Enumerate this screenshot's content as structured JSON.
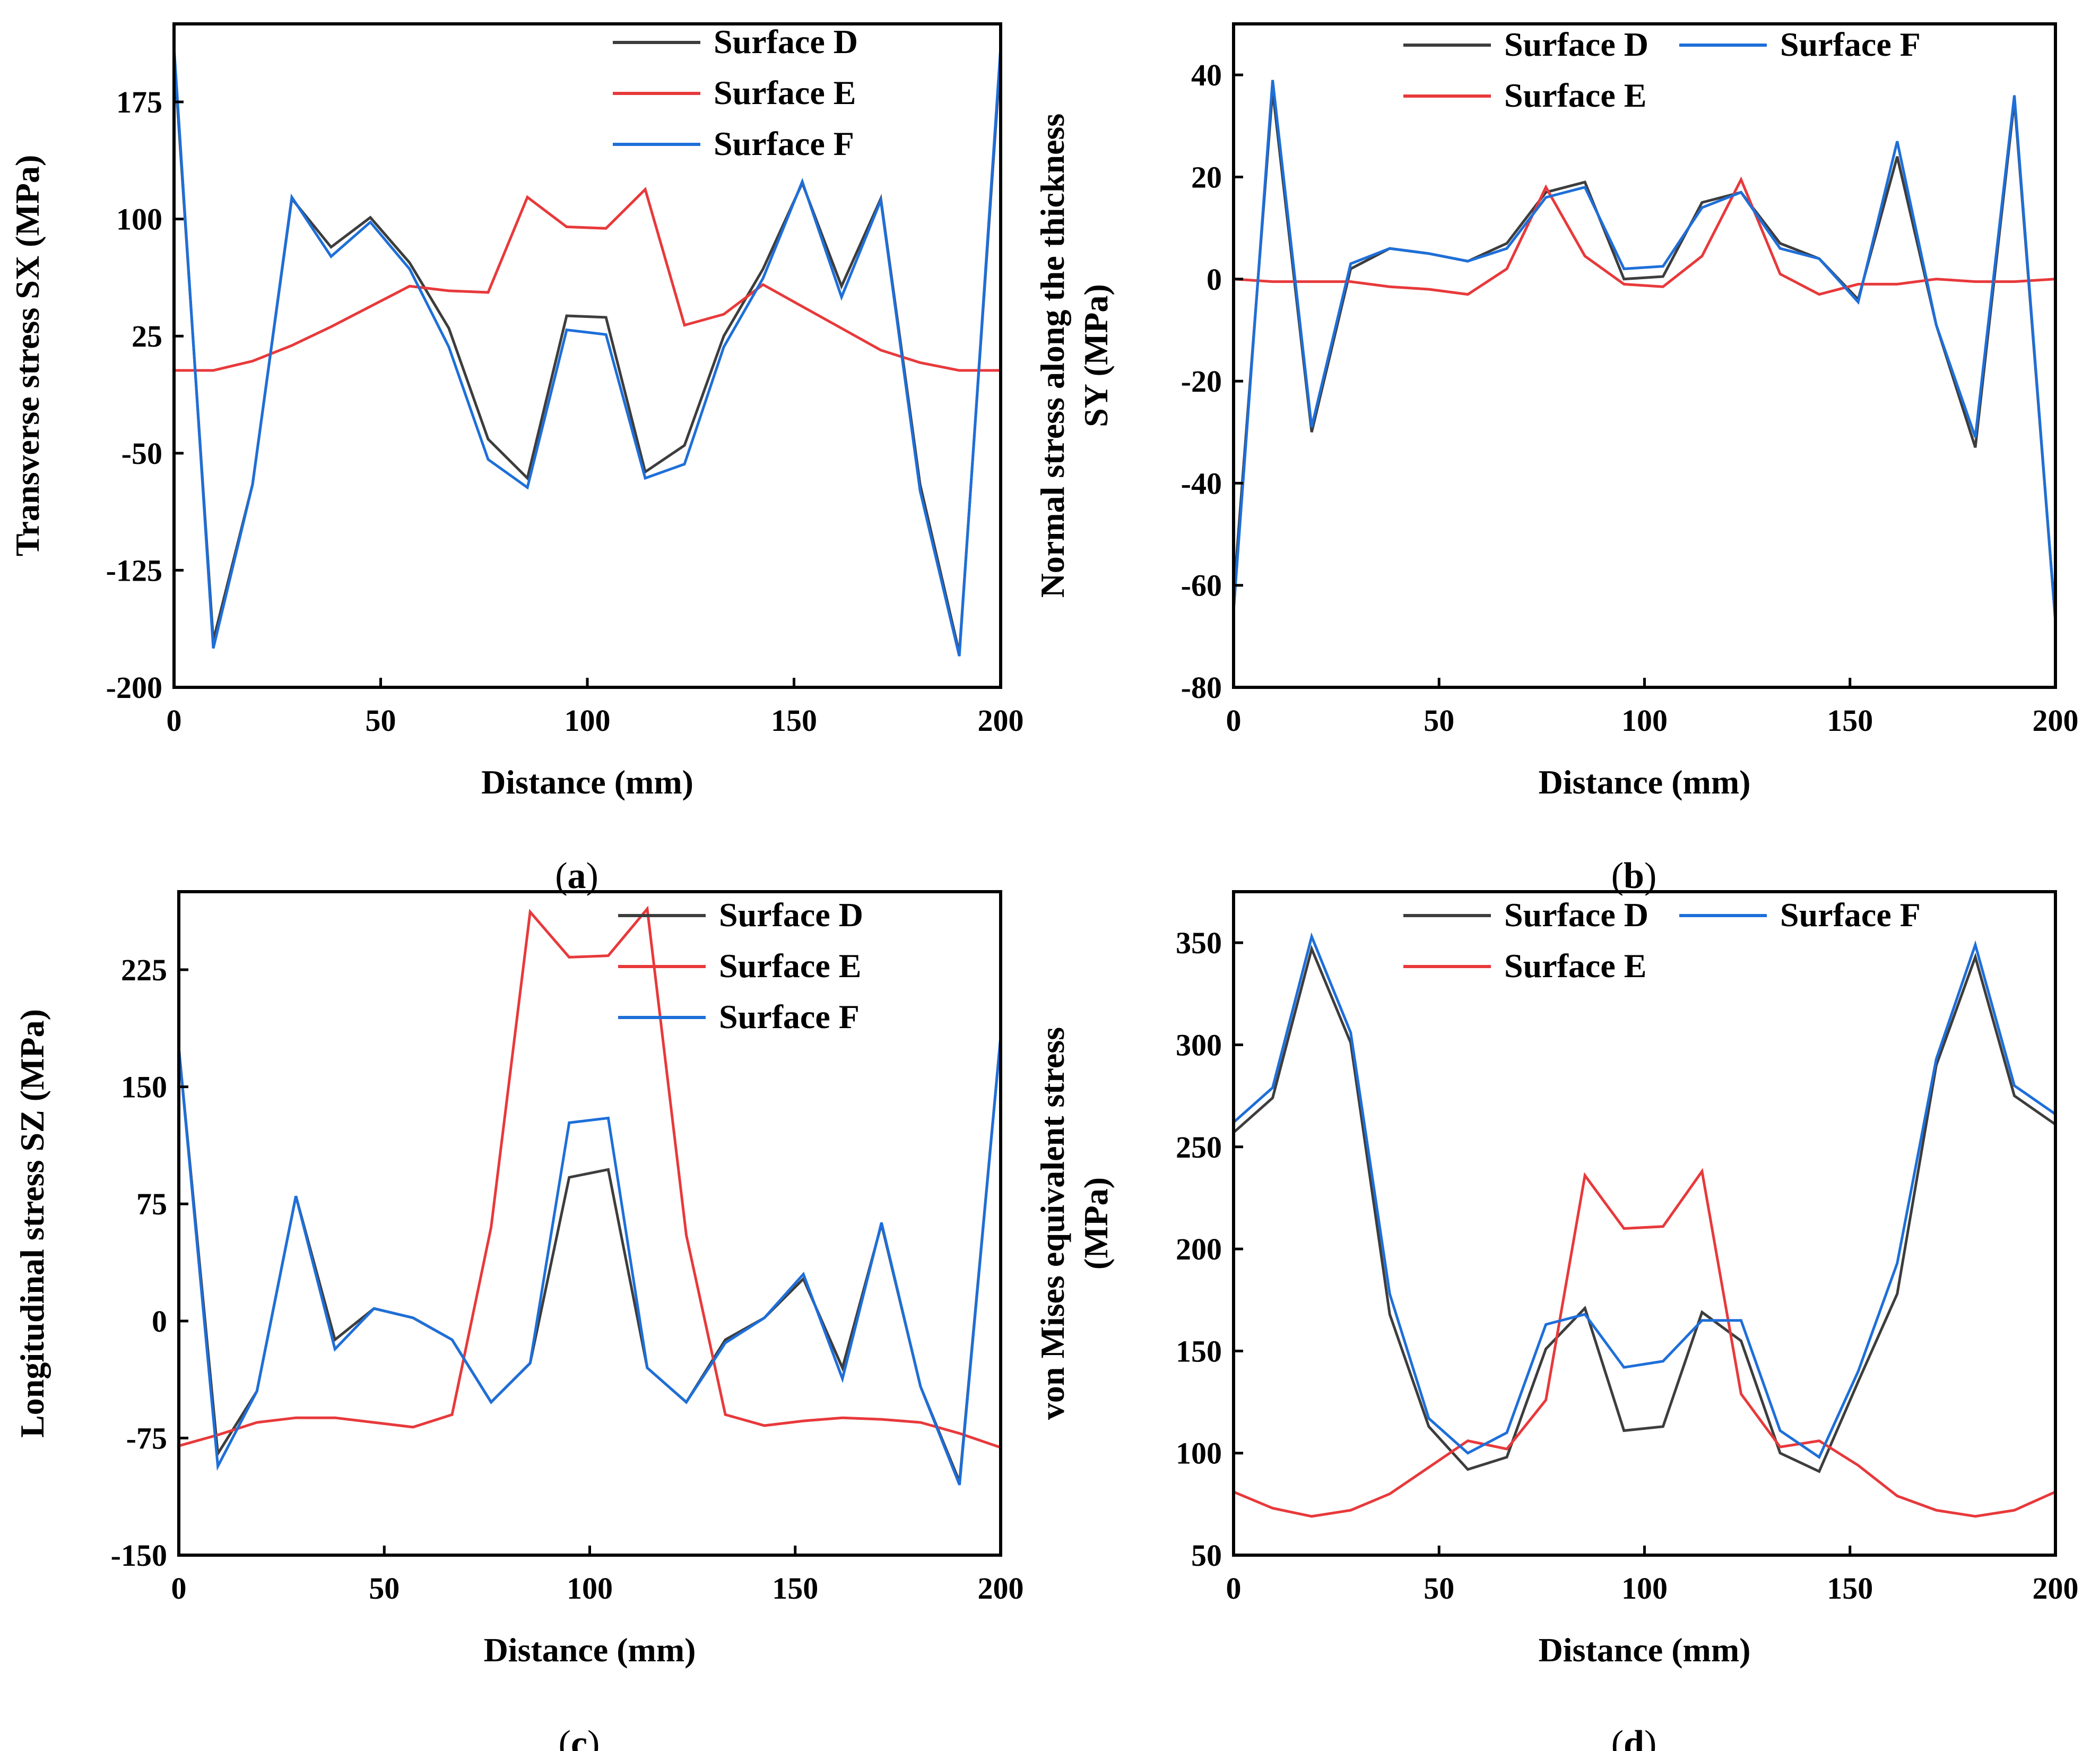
{
  "colors": {
    "surface_d": "#3d3d3d",
    "surface_e": "#e8393b",
    "surface_f": "#1e6fd9",
    "axis": "#000000"
  },
  "chart_data": [
    {
      "panel": "(a)",
      "panel_letter": "a",
      "type": "line",
      "xlabel": "Distance (mm)",
      "ylabel_lines": [
        "Transverse stress SX (MPa)"
      ],
      "xlim": [
        0,
        200
      ],
      "ylim": [
        -200,
        225
      ],
      "xticks": [
        0,
        50,
        100,
        150,
        200
      ],
      "xtick_labels": [
        "0",
        "50",
        "100",
        "150",
        "200"
      ],
      "yticks": [
        -200,
        -125,
        -50,
        25,
        100,
        175
      ],
      "ytick_labels": [
        "-200",
        "-125",
        "-50",
        "25",
        "100",
        "175"
      ],
      "legend_columns": 1,
      "legend_order": [
        "Surface D",
        "Surface E",
        "Surface F"
      ],
      "series": [
        {
          "name": "Surface D",
          "color_key": "surface_d",
          "x": [
            0,
            9.5,
            19,
            28.5,
            38,
            47.5,
            57,
            66.5,
            76,
            85.5,
            95,
            104.5,
            114,
            123.5,
            133,
            142.5,
            152,
            161.5,
            171,
            180.5,
            190,
            200
          ],
          "y": [
            205,
            -170,
            -70,
            113,
            82,
            101,
            72,
            30,
            -41,
            -66,
            38,
            37,
            -62,
            -45,
            25,
            68,
            123,
            57,
            113,
            -70,
            -178,
            205
          ]
        },
        {
          "name": "Surface E",
          "color_key": "surface_e",
          "x": [
            0,
            9.5,
            19,
            28.5,
            38,
            47.5,
            57,
            66.5,
            76,
            85.5,
            95,
            104.5,
            114,
            123.5,
            133,
            142.5,
            152,
            161.5,
            171,
            180.5,
            190,
            200
          ],
          "y": [
            3,
            3,
            9,
            19,
            31,
            44,
            57,
            54,
            53,
            114,
            95,
            94,
            119,
            32,
            39,
            58,
            44,
            30,
            16,
            8,
            3,
            3
          ]
        },
        {
          "name": "Surface F",
          "color_key": "surface_f",
          "x": [
            0,
            9.5,
            19,
            28.5,
            38,
            47.5,
            57,
            66.5,
            76,
            85.5,
            95,
            104.5,
            114,
            123.5,
            133,
            142.5,
            152,
            161.5,
            171,
            180.5,
            190,
            200
          ],
          "y": [
            210,
            -175,
            -70,
            114,
            76,
            98,
            68,
            18,
            -54,
            -72,
            29,
            26,
            -66,
            -57,
            18,
            62,
            124,
            50,
            112,
            -74,
            -180,
            210
          ]
        }
      ]
    },
    {
      "panel": "(b)",
      "panel_letter": "b",
      "type": "line",
      "xlabel": "Distance (mm)",
      "ylabel_lines": [
        "Normal stress along the thickness",
        "SY (MPa)"
      ],
      "xlim": [
        0,
        200
      ],
      "ylim": [
        -80,
        50
      ],
      "xticks": [
        0,
        50,
        100,
        150,
        200
      ],
      "xtick_labels": [
        "0",
        "50",
        "100",
        "150",
        "200"
      ],
      "yticks": [
        -80,
        -60,
        -40,
        -20,
        0,
        20,
        40
      ],
      "ytick_labels": [
        "-80",
        "-60",
        "-40",
        "-20",
        "0",
        "20",
        "40"
      ],
      "legend_columns": 2,
      "legend_order": [
        "Surface D",
        "Surface F",
        "Surface E"
      ],
      "series": [
        {
          "name": "Surface D",
          "color_key": "surface_d",
          "x": [
            0,
            9.5,
            19,
            28.5,
            38,
            47.5,
            57,
            66.5,
            76,
            85.5,
            95,
            104.5,
            114,
            123.5,
            133,
            142.5,
            152,
            161.5,
            171,
            180.5,
            190,
            200
          ],
          "y": [
            -62,
            37,
            -30,
            2,
            6,
            5,
            3.5,
            7,
            17,
            19,
            0,
            0.5,
            15,
            17,
            7,
            4,
            -4,
            24,
            -9,
            -33,
            35,
            -67
          ]
        },
        {
          "name": "Surface E",
          "color_key": "surface_e",
          "x": [
            0,
            9.5,
            19,
            28.5,
            38,
            47.5,
            57,
            66.5,
            76,
            85.5,
            95,
            104.5,
            114,
            123.5,
            133,
            142.5,
            152,
            161.5,
            171,
            180.5,
            190,
            200
          ],
          "y": [
            0,
            -0.5,
            -0.5,
            -0.5,
            -1.5,
            -2,
            -3,
            2,
            18,
            4.5,
            -1,
            -1.5,
            4.5,
            19.5,
            1,
            -3,
            -1,
            -1,
            0,
            -0.5,
            -0.5,
            0
          ]
        },
        {
          "name": "Surface F",
          "color_key": "surface_f",
          "x": [
            0,
            9.5,
            19,
            28.5,
            38,
            47.5,
            57,
            66.5,
            76,
            85.5,
            95,
            104.5,
            114,
            123.5,
            133,
            142.5,
            152,
            161.5,
            171,
            180.5,
            190,
            200
          ],
          "y": [
            -65,
            39,
            -29,
            3,
            6,
            5,
            3.5,
            6,
            16,
            18,
            2,
            2.5,
            14,
            17,
            6,
            4,
            -4.5,
            27,
            -9,
            -31,
            36,
            -67
          ]
        }
      ]
    },
    {
      "panel": "(c)",
      "panel_letter": "c",
      "type": "line",
      "xlabel": "Distance (mm)",
      "ylabel_lines": [
        "Longitudinal stress SZ (MPa)"
      ],
      "xlim": [
        0,
        200
      ],
      "ylim": [
        -150,
        275
      ],
      "xticks": [
        0,
        50,
        100,
        150,
        200
      ],
      "xtick_labels": [
        "0",
        "50",
        "100",
        "150",
        "200"
      ],
      "yticks": [
        -150,
        -75,
        0,
        75,
        150,
        225
      ],
      "ytick_labels": [
        "-150",
        "-75",
        "0",
        "75",
        "150",
        "225"
      ],
      "legend_columns": 1,
      "legend_order": [
        "Surface D",
        "Surface E",
        "Surface F"
      ],
      "series": [
        {
          "name": "Surface D",
          "color_key": "surface_d",
          "x": [
            0,
            9.5,
            19,
            28.5,
            38,
            47.5,
            57,
            66.5,
            76,
            85.5,
            95,
            104.5,
            114,
            123.5,
            133,
            142.5,
            152,
            161.5,
            171,
            180.5,
            190,
            200
          ],
          "y": [
            175,
            -85,
            -45,
            80,
            -12,
            8,
            2,
            -12,
            -52,
            -27,
            92,
            97,
            -30,
            -52,
            -12,
            2,
            27,
            -30,
            62,
            -42,
            -103,
            182
          ]
        },
        {
          "name": "Surface E",
          "color_key": "surface_e",
          "x": [
            0,
            9.5,
            19,
            28.5,
            38,
            47.5,
            57,
            66.5,
            76,
            85.5,
            95,
            104.5,
            114,
            123.5,
            133,
            142.5,
            152,
            161.5,
            171,
            180.5,
            190,
            200
          ],
          "y": [
            -80,
            -73,
            -65,
            -62,
            -62,
            -65,
            -68,
            -60,
            60,
            262,
            233,
            234,
            264,
            55,
            -60,
            -67,
            -64,
            -62,
            -63,
            -65,
            -72,
            -81
          ]
        },
        {
          "name": "Surface F",
          "color_key": "surface_f",
          "x": [
            0,
            9.5,
            19,
            28.5,
            38,
            47.5,
            57,
            66.5,
            76,
            85.5,
            95,
            104.5,
            114,
            123.5,
            133,
            142.5,
            152,
            161.5,
            171,
            180.5,
            190,
            200
          ],
          "y": [
            175,
            -93,
            -45,
            80,
            -18,
            8,
            2,
            -12,
            -52,
            -27,
            127,
            130,
            -30,
            -52,
            -14,
            2,
            30,
            -37,
            63,
            -42,
            -105,
            182
          ]
        }
      ]
    },
    {
      "panel": "(d)",
      "panel_letter": "d",
      "type": "line",
      "xlabel": "Distance (mm)",
      "ylabel_lines": [
        "von Mises equivalent stress",
        "(MPa)"
      ],
      "xlim": [
        0,
        200
      ],
      "ylim": [
        50,
        375
      ],
      "xticks": [
        0,
        50,
        100,
        150,
        200
      ],
      "xtick_labels": [
        "0",
        "50",
        "100",
        "150",
        "200"
      ],
      "yticks": [
        50,
        100,
        150,
        200,
        250,
        300,
        350
      ],
      "ytick_labels": [
        "50",
        "100",
        "150",
        "200",
        "250",
        "300",
        "350"
      ],
      "legend_columns": 2,
      "legend_order": [
        "Surface D",
        "Surface F",
        "Surface E"
      ],
      "series": [
        {
          "name": "Surface D",
          "color_key": "surface_d",
          "x": [
            0,
            9.5,
            19,
            28.5,
            38,
            47.5,
            57,
            66.5,
            76,
            85.5,
            95,
            104.5,
            114,
            123.5,
            133,
            142.5,
            152,
            161.5,
            171,
            180.5,
            190,
            200
          ],
          "y": [
            257,
            274,
            347,
            301,
            168,
            113,
            92,
            98,
            151,
            171,
            111,
            113,
            169,
            155,
            100,
            91,
            135,
            178,
            290,
            343,
            275,
            261
          ]
        },
        {
          "name": "Surface E",
          "color_key": "surface_e",
          "x": [
            0,
            9.5,
            19,
            28.5,
            38,
            47.5,
            57,
            66.5,
            76,
            85.5,
            95,
            104.5,
            114,
            123.5,
            133,
            142.5,
            152,
            161.5,
            171,
            180.5,
            190,
            200
          ],
          "y": [
            81,
            73,
            69,
            72,
            80,
            93,
            106,
            102,
            126,
            236,
            210,
            211,
            238,
            129,
            103,
            106,
            94,
            79,
            72,
            69,
            72,
            81
          ]
        },
        {
          "name": "Surface F",
          "color_key": "surface_f",
          "x": [
            0,
            9.5,
            19,
            28.5,
            38,
            47.5,
            57,
            66.5,
            76,
            85.5,
            95,
            104.5,
            114,
            123.5,
            133,
            142.5,
            152,
            161.5,
            171,
            180.5,
            190,
            200
          ],
          "y": [
            262,
            279,
            353,
            306,
            178,
            117,
            100,
            110,
            163,
            168,
            142,
            145,
            165,
            165,
            111,
            98,
            140,
            193,
            293,
            349,
            280,
            266
          ]
        }
      ]
    }
  ]
}
